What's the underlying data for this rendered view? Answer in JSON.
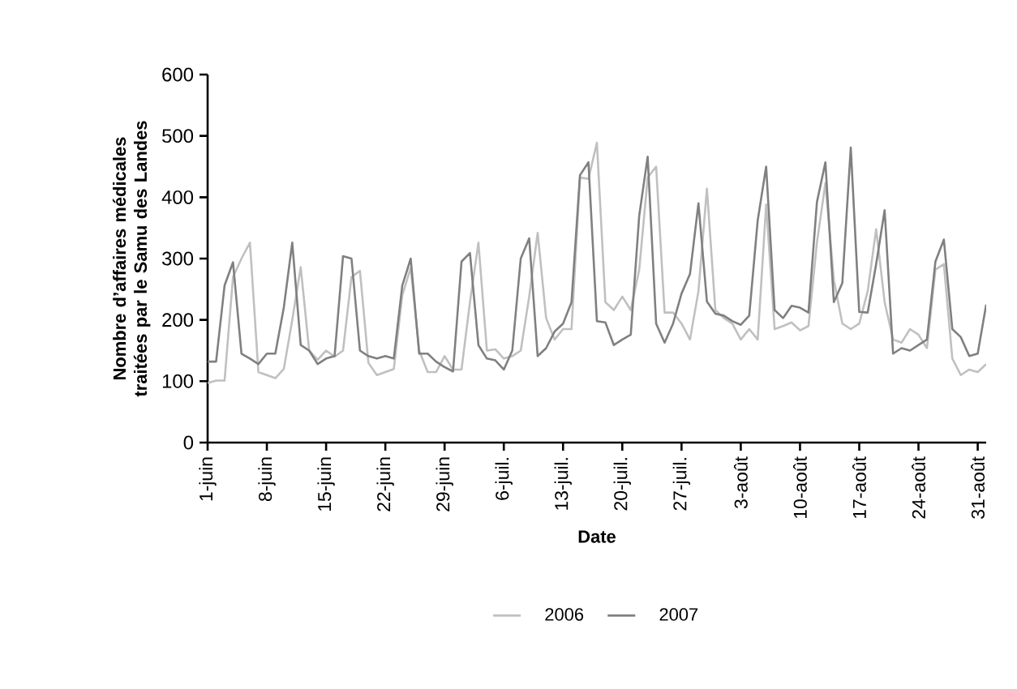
{
  "chart_data": {
    "type": "line",
    "xlabel": "Date",
    "ylabel": "Nombre d’affaires médicales traitées par le Samu des Landes",
    "categories": [
      "1-juin",
      null,
      null,
      null,
      null,
      null,
      null,
      "8-juin",
      null,
      null,
      null,
      null,
      null,
      null,
      "15-juin",
      null,
      null,
      null,
      null,
      null,
      null,
      "22-juin",
      null,
      null,
      null,
      null,
      null,
      null,
      "29-juin",
      null,
      null,
      null,
      null,
      null,
      null,
      "6-juil.",
      null,
      null,
      null,
      null,
      null,
      null,
      "13-juil.",
      null,
      null,
      null,
      null,
      null,
      null,
      "20-juil.",
      null,
      null,
      null,
      null,
      null,
      null,
      "27-juil.",
      null,
      null,
      null,
      null,
      null,
      null,
      "3-août",
      null,
      null,
      null,
      null,
      null,
      null,
      "10-août",
      null,
      null,
      null,
      null,
      null,
      null,
      "17-août",
      null,
      null,
      null,
      null,
      null,
      null,
      "24-août",
      null,
      null,
      null,
      null,
      null,
      null,
      "31-août",
      null
    ],
    "series": [
      {
        "name": "2006",
        "color": "#c0c0c0",
        "values": [
          97,
          101,
          101,
          270,
          300,
          326,
          115,
          110,
          105,
          120,
          200,
          286,
          150,
          135,
          150,
          140,
          150,
          270,
          280,
          130,
          110,
          115,
          120,
          240,
          285,
          150,
          115,
          115,
          141,
          119,
          119,
          229,
          326,
          150,
          152,
          137,
          141,
          150,
          238,
          342,
          203,
          168,
          185,
          185,
          432,
          430,
          489,
          229,
          216,
          238,
          216,
          282,
          432,
          450,
          212,
          212,
          194,
          168,
          247,
          414,
          216,
          203,
          194,
          168,
          185,
          168,
          388,
          185,
          190,
          196,
          183,
          190,
          326,
          423,
          265,
          194,
          185,
          194,
          247,
          348,
          229,
          168,
          163,
          185,
          176,
          154,
          282,
          291,
          137,
          110,
          119,
          115,
          128
        ]
      },
      {
        "name": "2007",
        "color": "#808080",
        "values": [
          132,
          132,
          256,
          294,
          145,
          137,
          128,
          145,
          145,
          220,
          326,
          159,
          150,
          128,
          137,
          141,
          304,
          300,
          150,
          141,
          137,
          141,
          137,
          256,
          300,
          145,
          145,
          132,
          123,
          116,
          295,
          309,
          159,
          137,
          134,
          119,
          150,
          300,
          333,
          141,
          154,
          181,
          194,
          229,
          436,
          457,
          198,
          196,
          159,
          168,
          176,
          370,
          466,
          194,
          163,
          194,
          243,
          275,
          390,
          230,
          210,
          207,
          198,
          192,
          207,
          362,
          450,
          216,
          203,
          223,
          220,
          212,
          392,
          457,
          229,
          260,
          481,
          213,
          212,
          291,
          379,
          145,
          154,
          150,
          159,
          168,
          295,
          331,
          185,
          172,
          141,
          145,
          225
        ]
      }
    ],
    "ylim": [
      0,
      600
    ],
    "yticks": [
      0,
      100,
      200,
      300,
      400,
      500,
      600
    ],
    "legend": "bottom",
    "line_style": "solid"
  }
}
